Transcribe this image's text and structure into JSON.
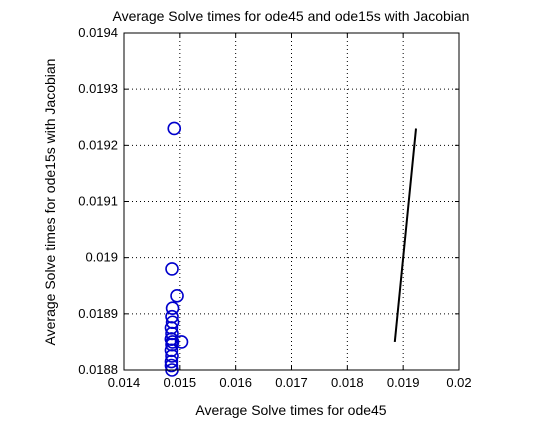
{
  "chart_data": {
    "type": "scatter",
    "title": "Average Solve times for ode45 and ode15s with Jacobian",
    "xlabel": "Average Solve times for ode45",
    "ylabel": "Average Solve times for ode15s with Jacobian",
    "xlim": [
      0.014,
      0.02
    ],
    "ylim": [
      0.0188,
      0.0194
    ],
    "xticks": [
      0.014,
      0.015,
      0.016,
      0.017,
      0.018,
      0.019,
      0.02
    ],
    "xtick_labels": [
      "0.014",
      "0.015",
      "0.016",
      "0.017",
      "0.018",
      "0.019",
      "0.02"
    ],
    "yticks": [
      0.0188,
      0.0189,
      0.019,
      0.0191,
      0.0192,
      0.0193,
      0.0194
    ],
    "ytick_labels": [
      "0.0188",
      "0.0189",
      "0.019",
      "0.0191",
      "0.0192",
      "0.0193",
      "0.0194"
    ],
    "grid": true,
    "colors": {
      "markers": "#0000cc",
      "line": "#000000",
      "axes": "#000000"
    },
    "series": [
      {
        "style": "circle-markers",
        "points": [
          [
            0.0149,
            0.01923
          ],
          [
            0.01486,
            0.01898
          ],
          [
            0.01495,
            0.018932
          ],
          [
            0.01487,
            0.01891
          ],
          [
            0.01486,
            0.018895
          ],
          [
            0.01487,
            0.018885
          ],
          [
            0.01485,
            0.018875
          ],
          [
            0.01486,
            0.018865
          ],
          [
            0.01485,
            0.018855
          ],
          [
            0.01486,
            0.018845
          ],
          [
            0.01485,
            0.018835
          ],
          [
            0.01486,
            0.018825
          ],
          [
            0.01485,
            0.018815
          ],
          [
            0.01485,
            0.018808
          ],
          [
            0.01486,
            0.0188
          ],
          [
            0.01485,
            0.018855
          ],
          [
            0.01487,
            0.01885
          ],
          [
            0.01503,
            0.01885
          ]
        ]
      },
      {
        "style": "line",
        "points": [
          [
            0.01885,
            0.01885
          ],
          [
            0.01923,
            0.01923
          ]
        ]
      }
    ]
  }
}
